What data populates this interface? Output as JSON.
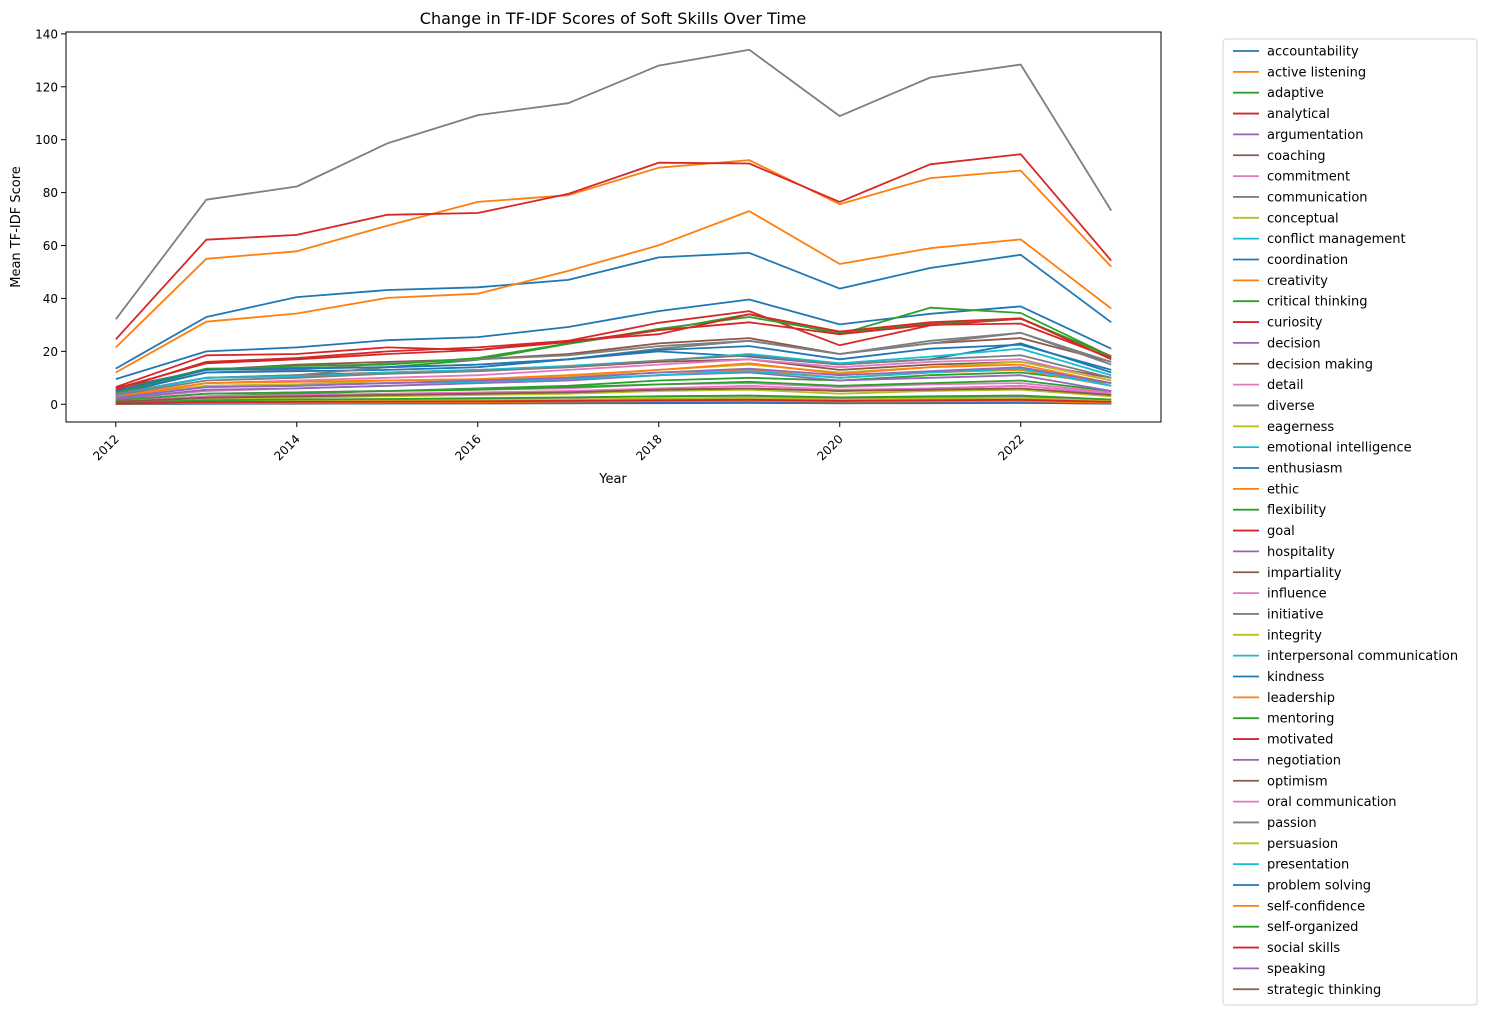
{
  "chart_data": {
    "type": "line",
    "title": "Change in TF-IDF Scores of Soft Skills Over Time",
    "xlabel": "Year",
    "ylabel": "Mean TF-IDF Score",
    "x": [
      2012,
      2013,
      2014,
      2015,
      2016,
      2017,
      2018,
      2019,
      2020,
      2021,
      2022,
      2023
    ],
    "x_ticks": [
      "2012",
      "2014",
      "2016",
      "2018",
      "2020",
      "2022"
    ],
    "y_ticks": [
      "0",
      "20",
      "40",
      "60",
      "80",
      "100",
      "120",
      "140"
    ],
    "xlim": [
      2011.45,
      2023.55
    ],
    "ylim": [
      -6.7,
      140.7
    ],
    "grid": false,
    "legend_position": "outside-right",
    "palette": [
      "#1f77b4",
      "#ff7f0e",
      "#2ca02c",
      "#d62728",
      "#9467bd",
      "#8c564b",
      "#e377c2",
      "#7f7f7f",
      "#bcbd22",
      "#17becf"
    ],
    "series": [
      {
        "name": "accountability",
        "values": [
          13.5,
          33,
          40.5,
          43.2,
          44.2,
          47,
          55.5,
          57.2,
          43.7,
          51.5,
          56.5,
          31
        ]
      },
      {
        "name": "active listening",
        "values": [
          21.5,
          55,
          57.8,
          67.5,
          76.5,
          79,
          89.4,
          92.3,
          75.6,
          85.5,
          88.3,
          52
        ]
      },
      {
        "name": "adaptive",
        "values": [
          1,
          3,
          4,
          5,
          6,
          7,
          9,
          10,
          9,
          11,
          12,
          8
        ]
      },
      {
        "name": "analytical",
        "values": [
          24.5,
          62.2,
          64,
          71.6,
          72.3,
          79.5,
          91.3,
          91,
          76.5,
          90.7,
          94.5,
          54.3
        ]
      },
      {
        "name": "argumentation",
        "values": [
          0.5,
          1,
          1.2,
          1.5,
          2,
          2.5,
          3,
          3.2,
          2.2,
          2.8,
          3,
          1.5
        ]
      },
      {
        "name": "coaching",
        "values": [
          6,
          13,
          15,
          16,
          17,
          19,
          23,
          25,
          19,
          23,
          25,
          16
        ]
      },
      {
        "name": "commitment",
        "values": [
          2,
          5,
          6,
          7,
          8,
          9,
          11,
          13,
          10,
          12,
          14,
          7
        ]
      },
      {
        "name": "communication",
        "values": [
          32.1,
          77.3,
          82.3,
          98.6,
          109.3,
          113.8,
          128,
          134,
          108.9,
          123.5,
          128.4,
          73.2
        ]
      },
      {
        "name": "conceptual",
        "values": [
          1,
          2,
          2.5,
          3,
          3.5,
          4,
          5,
          5.5,
          4,
          5,
          5.5,
          3
        ]
      },
      {
        "name": "conflict management",
        "values": [
          0.2,
          0.5,
          0.6,
          0.7,
          0.8,
          1,
          1.2,
          1.3,
          1,
          1.2,
          1.3,
          0.7
        ]
      },
      {
        "name": "coordination",
        "values": [
          9.5,
          20,
          21.5,
          24.2,
          25.4,
          29.2,
          35.2,
          39.6,
          30.2,
          34.2,
          37,
          21
        ]
      },
      {
        "name": "creativity",
        "values": [
          12,
          31.2,
          34.3,
          40.2,
          41.8,
          50.4,
          60.1,
          73,
          53,
          59,
          62.3,
          36.2
        ]
      },
      {
        "name": "critical thinking",
        "values": [
          5,
          13.5,
          13.8,
          14,
          16.8,
          22.8,
          28,
          34,
          26.5,
          36.5,
          34.5,
          18
        ]
      },
      {
        "name": "curiosity",
        "values": [
          5.5,
          16,
          17.5,
          20,
          21.5,
          24,
          30.8,
          35.2,
          22.3,
          29.8,
          32.3,
          18.2
        ]
      },
      {
        "name": "decision",
        "values": [
          0.8,
          2.5,
          3,
          3.5,
          4,
          4.5,
          5.5,
          6,
          5,
          6,
          7,
          4
        ]
      },
      {
        "name": "decision making",
        "values": [
          4,
          10,
          11,
          12,
          13,
          14,
          16,
          17,
          13,
          15,
          16,
          10
        ]
      },
      {
        "name": "detail",
        "values": [
          3,
          8,
          9,
          10,
          11,
          13,
          15,
          17,
          14,
          16,
          17,
          9
        ]
      },
      {
        "name": "diverse",
        "values": [
          4.5,
          12,
          13,
          15.5,
          17,
          18.5,
          22,
          24,
          19,
          23,
          27,
          16
        ]
      },
      {
        "name": "eagerness",
        "values": [
          0.3,
          1,
          1.2,
          1.4,
          1.6,
          1.8,
          2.2,
          2.5,
          1.8,
          2.2,
          2.4,
          1.2
        ]
      },
      {
        "name": "emotional intelligence",
        "values": [
          0.1,
          0.3,
          0.4,
          0.5,
          0.6,
          0.7,
          0.8,
          0.9,
          0.7,
          0.8,
          0.9,
          0.5
        ]
      },
      {
        "name": "enthusiasm",
        "values": [
          4,
          12,
          12.5,
          13,
          14,
          17,
          20,
          18,
          15,
          17,
          23,
          12
        ]
      },
      {
        "name": "ethic",
        "values": [
          3,
          7,
          7.5,
          8,
          9,
          10,
          12,
          13,
          10,
          12,
          13,
          7
        ]
      },
      {
        "name": "flexibility",
        "values": [
          4.5,
          13,
          14.5,
          15,
          17.5,
          23,
          28.5,
          33,
          27,
          30.5,
          32.5,
          18
        ]
      },
      {
        "name": "goal",
        "values": [
          6.5,
          18.5,
          19,
          21.5,
          20.5,
          24,
          26.5,
          34,
          27.5,
          31,
          32.5,
          17
        ]
      },
      {
        "name": "hospitality",
        "values": [
          0.1,
          0.3,
          0.3,
          0.4,
          0.4,
          0.5,
          0.6,
          0.7,
          0.5,
          0.6,
          0.6,
          0.3
        ]
      },
      {
        "name": "impartiality",
        "values": [
          0.1,
          0.2,
          0.2,
          0.3,
          0.3,
          0.4,
          0.4,
          0.5,
          0.4,
          0.4,
          0.5,
          0.2
        ]
      },
      {
        "name": "influence",
        "values": [
          1.5,
          4,
          4.5,
          5,
          5.5,
          6,
          7.5,
          8,
          6.5,
          7.5,
          8,
          4.5
        ]
      },
      {
        "name": "initiative",
        "values": [
          4,
          10,
          11,
          14,
          15,
          17,
          21,
          24,
          19,
          24,
          27,
          15
        ]
      },
      {
        "name": "integrity",
        "values": [
          2,
          7,
          7.5,
          9,
          9.5,
          10.5,
          13,
          15,
          12,
          14,
          16,
          9
        ]
      },
      {
        "name": "interpersonal communication",
        "values": [
          3.5,
          10,
          10.5,
          12,
          13,
          14.5,
          16.5,
          19,
          15.5,
          18,
          21,
          11
        ]
      },
      {
        "name": "kindness",
        "values": [
          0.1,
          0.2,
          0.3,
          0.3,
          0.4,
          0.4,
          0.5,
          0.6,
          0.4,
          0.5,
          0.6,
          0.3
        ]
      },
      {
        "name": "leadership",
        "values": [
          3,
          8,
          8.5,
          9,
          9.5,
          11,
          13,
          15.5,
          11.5,
          14,
          15,
          8
        ]
      },
      {
        "name": "mentoring",
        "values": [
          1.5,
          4,
          4.5,
          5,
          5.5,
          6.5,
          7.5,
          8.5,
          7,
          8,
          9,
          5
        ]
      },
      {
        "name": "motivated",
        "values": [
          6,
          15.5,
          17,
          19,
          20.5,
          23.5,
          28,
          31,
          26.5,
          30,
          30.5,
          17.5
        ]
      },
      {
        "name": "negotiation",
        "values": [
          2,
          5.5,
          6,
          7,
          8,
          9,
          11,
          12,
          9,
          10,
          11,
          5
        ]
      },
      {
        "name": "optimism",
        "values": [
          0.2,
          0.5,
          0.6,
          0.7,
          0.8,
          1,
          1.2,
          1.3,
          1,
          1.2,
          1.3,
          0.6
        ]
      },
      {
        "name": "oral communication",
        "values": [
          1,
          3,
          3.5,
          4,
          4.5,
          5,
          6,
          7,
          5.5,
          6,
          7,
          4
        ]
      },
      {
        "name": "passion",
        "values": [
          3.5,
          9,
          10,
          11.5,
          12.5,
          14,
          16.5,
          18.5,
          15,
          17,
          18.5,
          10
        ]
      },
      {
        "name": "persuasion",
        "values": [
          0.3,
          0.8,
          1,
          1.2,
          1.4,
          1.6,
          2,
          2.2,
          1.7,
          2,
          2.2,
          1.2
        ]
      },
      {
        "name": "presentation",
        "values": [
          2.5,
          6.5,
          7,
          8,
          8.5,
          9.5,
          11,
          12.5,
          10,
          12,
          13.5,
          7
        ]
      },
      {
        "name": "problem solving",
        "values": [
          5,
          13,
          13.5,
          14,
          15,
          17,
          20.5,
          22,
          17,
          21,
          22.5,
          13
        ]
      },
      {
        "name": "self-confidence",
        "values": [
          0.2,
          0.5,
          0.6,
          0.7,
          0.8,
          1,
          1.2,
          1.3,
          1,
          1.1,
          1.2,
          0.6
        ]
      },
      {
        "name": "self-organized",
        "values": [
          0.5,
          1.5,
          1.8,
          2,
          2.3,
          2.6,
          3,
          3.3,
          2.6,
          3,
          3.3,
          1.8
        ]
      },
      {
        "name": "social skills",
        "values": [
          0.3,
          0.8,
          0.9,
          1,
          1.1,
          1.3,
          1.5,
          1.7,
          1.3,
          1.5,
          1.7,
          0.9
        ]
      },
      {
        "name": "speaking",
        "values": [
          2.5,
          6.5,
          7,
          8,
          9,
          10,
          12,
          13.5,
          11,
          12.5,
          14,
          8
        ]
      },
      {
        "name": "strategic thinking",
        "values": [
          1,
          2.5,
          3,
          3.5,
          4,
          4.5,
          5.5,
          6,
          5,
          5.5,
          6,
          3.5
        ]
      }
    ]
  }
}
